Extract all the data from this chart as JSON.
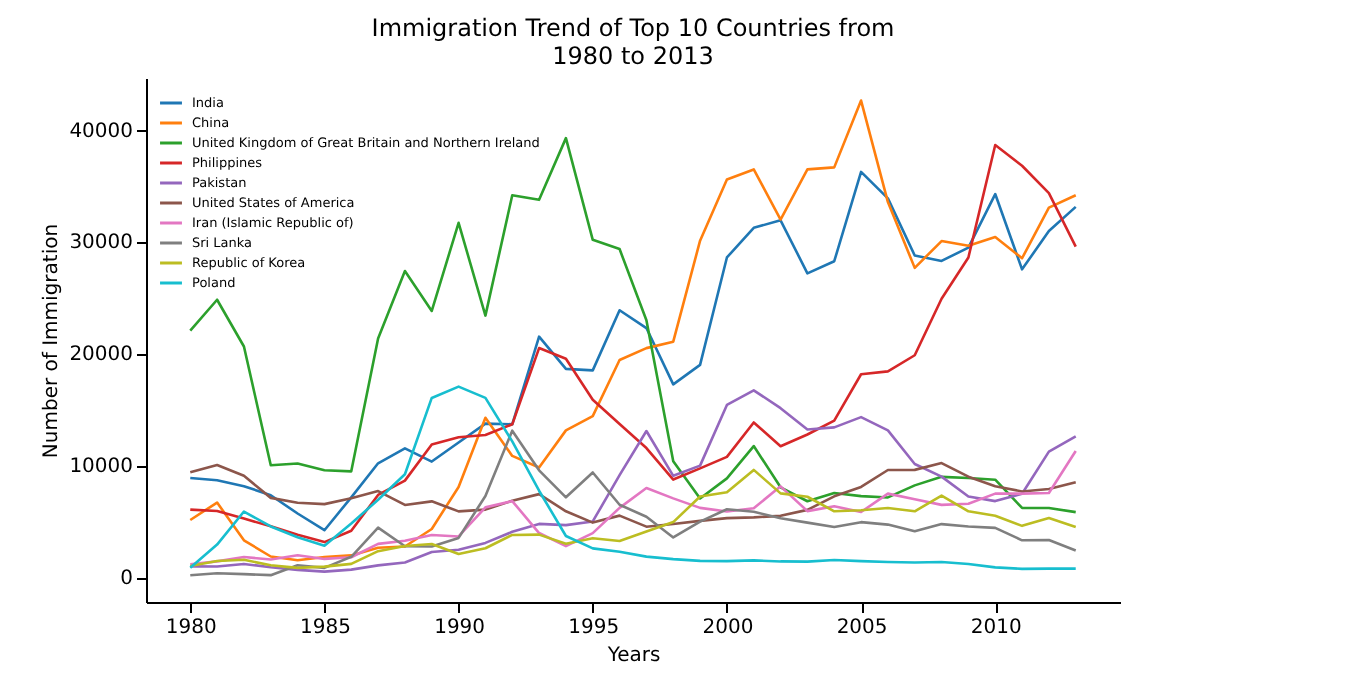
{
  "chart_data": {
    "type": "line",
    "title": "Immigration Trend of Top 10 Countries from\n1980 to 2013",
    "xlabel": "Years",
    "ylabel": "Number of Immigration",
    "x": [
      1980,
      1981,
      1982,
      1983,
      1984,
      1985,
      1986,
      1987,
      1988,
      1989,
      1990,
      1991,
      1992,
      1993,
      1994,
      1995,
      1996,
      1997,
      1998,
      1999,
      2000,
      2001,
      2002,
      2003,
      2004,
      2005,
      2006,
      2007,
      2008,
      2009,
      2010,
      2011,
      2012,
      2013
    ],
    "xlim": [
      1978.35,
      2014.65
    ],
    "xticks": [
      1980,
      1985,
      1990,
      1995,
      2000,
      2005,
      2010
    ],
    "ylim": [
      -2200,
      44600
    ],
    "yticks": [
      0,
      10000,
      20000,
      30000,
      40000
    ],
    "legend": "top left",
    "grid": false,
    "marker": "none",
    "line_style": "solid",
    "series": [
      {
        "name": "India",
        "color": "#1f77b4",
        "values": [
          8880,
          8670,
          8147,
          7338,
          5704,
          4211,
          7150,
          10189,
          11522,
          10343,
          12041,
          13734,
          13673,
          21496,
          18620,
          18489,
          23859,
          22268,
          17241,
          18974,
          28572,
          31223,
          31889,
          27155,
          28235,
          36210,
          33848,
          28742,
          28261,
          29456,
          34235,
          27509,
          30933,
          33087
        ]
      },
      {
        "name": "China",
        "color": "#ff7f0e",
        "values": [
          5123,
          6682,
          3308,
          1863,
          1527,
          1816,
          1960,
          2643,
          2758,
          4323,
          8076,
          14255,
          10846,
          9817,
          13128,
          14398,
          19415,
          20475,
          21049,
          30069,
          35529,
          36434,
          31961,
          36439,
          36619,
          42584,
          33518,
          27642,
          30037,
          29622,
          30391,
          28502,
          33024,
          34129
        ]
      },
      {
        "name": "United Kingdom of Great Britain and Northern Ireland",
        "color": "#2ca02c",
        "values": [
          22045,
          24796,
          20620,
          10015,
          10170,
          9564,
          9470,
          21337,
          27359,
          23795,
          31668,
          23380,
          34123,
          33720,
          39231,
          30145,
          29322,
          22965,
          10367,
          7045,
          8840,
          11728,
          8046,
          6797,
          7533,
          7258,
          7140,
          8216,
          8979,
          8876,
          8724,
          6204,
          6195,
          5827
        ]
      },
      {
        "name": "Philippines",
        "color": "#d62728",
        "values": [
          6051,
          5921,
          5249,
          4562,
          3801,
          3150,
          4166,
          7360,
          8639,
          11865,
          12509,
          12718,
          13670,
          20479,
          19532,
          15864,
          13692,
          11549,
          8735,
          9734,
          10763,
          13836,
          11707,
          12758,
          14004,
          18139,
          18400,
          19837,
          24887,
          28573,
          38617,
          36765,
          34315,
          29544
        ]
      },
      {
        "name": "Pakistan",
        "color": "#9467bd",
        "values": [
          978,
          972,
          1201,
          900,
          668,
          514,
          691,
          1072,
          1334,
          2261,
          2470,
          3079,
          4071,
          4777,
          4666,
          4994,
          9125,
          13073,
          9068,
          9979,
          15400,
          16708,
          15110,
          13205,
          13399,
          14314,
          13127,
          10124,
          8994,
          7217,
          6811,
          7468,
          11227,
          12603
        ]
      },
      {
        "name": "United States of America",
        "color": "#8c564b",
        "values": [
          9378,
          10030,
          9074,
          7100,
          6661,
          6543,
          7074,
          7705,
          6469,
          6790,
          5892,
          6054,
          6842,
          7435,
          5901,
          4890,
          5515,
          4528,
          4768,
          5048,
          5292,
          5356,
          5496,
          6028,
          7240,
          8080,
          9589,
          9600,
          10210,
          8995,
          8142,
          7676,
          7891,
          8501
        ]
      },
      {
        "name": "Iran (Islamic Republic of)",
        "color": "#e377c2",
        "values": [
          1172,
          1429,
          1822,
          1592,
          1977,
          1648,
          1794,
          2989,
          3273,
          3781,
          3655,
          6250,
          6814,
          3959,
          2785,
          3956,
          6205,
          7982,
          7057,
          6208,
          5884,
          6169,
          8129,
          5918,
          6348,
          5837,
          7480,
          6974,
          6475,
          6580,
          7477,
          7479,
          7534,
          11291
        ]
      },
      {
        "name": "Sri Lanka",
        "color": "#7f7f7f",
        "values": [
          185,
          371,
          290,
          197,
          1086,
          845,
          1838,
          4447,
          2779,
          2758,
          3525,
          7266,
          13102,
          9563,
          7150,
          9368,
          6484,
          5415,
          3566,
          4982,
          6081,
          5861,
          5279,
          4892,
          4495,
          4930,
          4714,
          4123,
          4756,
          4547,
          4422,
          3309,
          3338,
          2394
        ]
      },
      {
        "name": "Republic of Korea",
        "color": "#bcbd22",
        "values": [
          1011,
          1456,
          1572,
          1081,
          847,
          962,
          1208,
          2338,
          2805,
          2979,
          2087,
          2598,
          3790,
          3819,
          3005,
          3501,
          3250,
          4093,
          4938,
          7217,
          7600,
          9600,
          7500,
          7200,
          5900,
          6000,
          6200,
          5900,
          7300,
          5900,
          5500,
          4600,
          5300,
          4500
        ]
      },
      {
        "name": "Poland",
        "color": "#17becf",
        "values": [
          863,
          2930,
          5881,
          4546,
          3588,
          2819,
          4808,
          6931,
          9211,
          16025,
          17040,
          16028,
          12145,
          7739,
          3692,
          2590,
          2284,
          1855,
          1626,
          1469,
          1452,
          1520,
          1424,
          1402,
          1545,
          1450,
          1371,
          1332,
          1372,
          1195,
          892,
          758,
          782,
          778
        ]
      }
    ]
  }
}
